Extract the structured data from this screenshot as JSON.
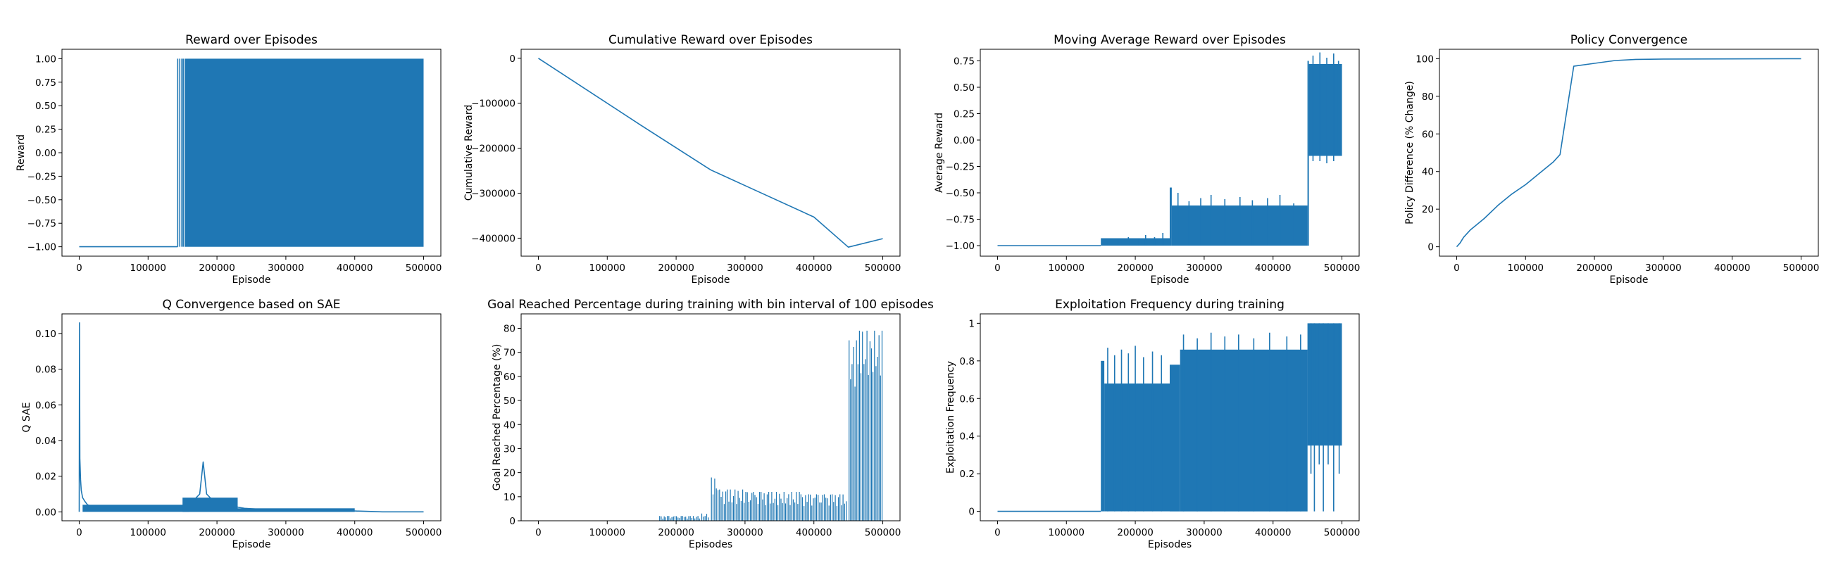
{
  "figure": {
    "suptitle": "",
    "color": "#1f77b4"
  },
  "chart_data": [
    {
      "type": "area",
      "title": "Reward over Episodes",
      "xlabel": "Episode",
      "ylabel": "Reward",
      "xlim": [
        -25000,
        525000
      ],
      "ylim": [
        -1.1,
        1.1
      ],
      "xticks": [
        0,
        100000,
        200000,
        300000,
        400000,
        500000
      ],
      "yticks": [
        -1.0,
        -0.75,
        -0.5,
        -0.25,
        0.0,
        0.25,
        0.5,
        0.75,
        1.0
      ],
      "ytick_labels": [
        "−1.00",
        "−0.75",
        "−0.50",
        "−0.25",
        "0.00",
        "0.25",
        "0.50",
        "0.75",
        "1.00"
      ],
      "grid": false,
      "series": [
        {
          "type": "line",
          "x": [
            0,
            143000
          ],
          "y": [
            -1.0,
            -1.0
          ]
        }
      ],
      "spikes": {
        "x": [
          143000,
          146000,
          149000,
          151000
        ],
        "y0": -1.0,
        "y1": 1.0
      },
      "bands": [
        {
          "x0": 153000,
          "x1": 500000,
          "y0": -1.0,
          "y1": 1.0
        }
      ]
    },
    {
      "type": "line",
      "title": "Cumulative Reward over Episodes",
      "xlabel": "Episode",
      "ylabel": "Cumulative Reward",
      "xlim": [
        -25000,
        525000
      ],
      "ylim": [
        -440000,
        20000
      ],
      "xticks": [
        0,
        100000,
        200000,
        300000,
        400000,
        500000
      ],
      "yticks": [
        -400000,
        -300000,
        -200000,
        -100000,
        0
      ],
      "ytick_labels": [
        "−400000",
        "−300000",
        "−200000",
        "−100000",
        "0"
      ],
      "grid": false,
      "series": [
        {
          "x": [
            0,
            150000,
            250000,
            300000,
            400000,
            450000,
            500000
          ],
          "y": [
            0,
            -150000,
            -248000,
            -283000,
            -353000,
            -420000,
            -401000
          ]
        }
      ]
    },
    {
      "type": "line",
      "title": "Moving Average Reward over Episodes",
      "xlabel": "Episode",
      "ylabel": "Average Reward",
      "xlim": [
        -25000,
        525000
      ],
      "ylim": [
        -1.1,
        0.86
      ],
      "xticks": [
        0,
        100000,
        200000,
        300000,
        400000,
        500000
      ],
      "yticks": [
        -1.0,
        -0.75,
        -0.5,
        -0.25,
        0.0,
        0.25,
        0.5,
        0.75
      ],
      "ytick_labels": [
        "−1.00",
        "−0.75",
        "−0.50",
        "−0.25",
        "0.00",
        "0.25",
        "0.50",
        "0.75"
      ],
      "grid": false,
      "series": [
        {
          "x": [
            0,
            140000,
            150000
          ],
          "y": [
            -1.0,
            -1.0,
            -1.0
          ]
        }
      ],
      "bands": [
        {
          "x0": 150000,
          "x1": 250000,
          "y0": -1.0,
          "y1": -0.93
        },
        {
          "x0": 250000,
          "x1": 253000,
          "y0": -1.0,
          "y1": -0.45
        },
        {
          "x0": 253000,
          "x1": 450000,
          "y0": -1.0,
          "y1": -0.62
        },
        {
          "x0": 450000,
          "x1": 452000,
          "y0": -1.0,
          "y1": 0.75
        },
        {
          "x0": 452000,
          "x1": 500000,
          "y0": -0.15,
          "y1": 0.72
        }
      ],
      "spikes": {
        "x": [
          160000,
          175000,
          190000,
          205000,
          215000,
          228000,
          240000,
          262000,
          278000,
          295000,
          310000,
          330000,
          352000,
          370000,
          392000,
          410000,
          430000,
          458000,
          468000,
          478000,
          488000,
          495000
        ],
        "y0": [
          -1.0,
          -1.0,
          -1.0,
          -1.0,
          -1.0,
          -1.0,
          -1.0,
          -1.0,
          -1.0,
          -1.0,
          -1.0,
          -1.0,
          -1.0,
          -1.0,
          -1.0,
          -1.0,
          -1.0,
          -0.2,
          -0.2,
          -0.22,
          -0.2,
          -0.15
        ],
        "y1": [
          -0.95,
          -0.94,
          -0.92,
          -0.93,
          -0.9,
          -0.92,
          -0.88,
          -0.5,
          -0.58,
          -0.55,
          -0.52,
          -0.56,
          -0.54,
          -0.57,
          -0.55,
          -0.52,
          -0.6,
          0.8,
          0.83,
          0.78,
          0.82,
          0.75
        ]
      }
    },
    {
      "type": "line",
      "title": "Policy Convergence",
      "xlabel": "Episode",
      "ylabel": "Policy Difference (% Change)",
      "xlim": [
        -25000,
        525000
      ],
      "ylim": [
        -5,
        105
      ],
      "xticks": [
        0,
        100000,
        200000,
        300000,
        400000,
        500000
      ],
      "yticks": [
        0,
        20,
        40,
        60,
        80,
        100
      ],
      "grid": false,
      "series": [
        {
          "x": [
            0,
            5000,
            10000,
            20000,
            40000,
            60000,
            80000,
            100000,
            120000,
            140000,
            150000,
            170000,
            200000,
            230000,
            260000,
            300000,
            500000
          ],
          "y": [
            0,
            2,
            5,
            9,
            15,
            22,
            28,
            33,
            39,
            45,
            49,
            96,
            97.5,
            99,
            99.6,
            99.8,
            100
          ]
        }
      ]
    },
    {
      "type": "line",
      "title": "Q Convergence based on SAE",
      "xlabel": "Episode",
      "ylabel": "Q SAE",
      "xlim": [
        -25000,
        525000
      ],
      "ylim": [
        -0.005,
        0.111
      ],
      "xticks": [
        0,
        100000,
        200000,
        300000,
        400000,
        500000
      ],
      "yticks": [
        0.0,
        0.02,
        0.04,
        0.06,
        0.08,
        0.1
      ],
      "ytick_labels": [
        "0.00",
        "0.02",
        "0.04",
        "0.06",
        "0.08",
        "0.10"
      ],
      "grid": false,
      "series": [
        {
          "x": [
            0,
            500,
            1000,
            2000,
            3000,
            5000,
            8000,
            12000,
            20000,
            40000,
            80000,
            120000,
            150000,
            165000,
            175000,
            180000,
            185000,
            195000,
            210000,
            240000,
            280000,
            320000,
            360000,
            400000,
            440000,
            500000
          ],
          "y": [
            0.0,
            0.106,
            0.03,
            0.018,
            0.012,
            0.008,
            0.006,
            0.004,
            0.003,
            0.003,
            0.002,
            0.002,
            0.003,
            0.006,
            0.01,
            0.028,
            0.01,
            0.006,
            0.004,
            0.002,
            0.001,
            0.001,
            0.001,
            0.0005,
            0.0,
            0.0
          ]
        }
      ],
      "bands": [
        {
          "x0": 5000,
          "x1": 160000,
          "y0": 0.0,
          "y1": 0.004
        },
        {
          "x0": 150000,
          "x1": 230000,
          "y0": 0.0,
          "y1": 0.008
        },
        {
          "x0": 230000,
          "x1": 400000,
          "y0": 0.0,
          "y1": 0.002
        }
      ]
    },
    {
      "type": "bar",
      "title": "Goal Reached Percentage during training with bin interval of 100 episodes",
      "xlabel": "Episodes",
      "ylabel": "Goal Reached Percentage (%)",
      "xlim": [
        -25000,
        525000
      ],
      "ylim": [
        0,
        86
      ],
      "xticks": [
        0,
        100000,
        200000,
        300000,
        400000,
        500000
      ],
      "yticks": [
        0,
        10,
        20,
        30,
        40,
        50,
        60,
        70,
        80
      ],
      "grid": false,
      "segments": [
        {
          "x0": 175000,
          "x1": 235000,
          "top": 2,
          "low": 0
        },
        {
          "x0": 236000,
          "x1": 248000,
          "top": 3,
          "low": 0
        },
        {
          "x0": 250000,
          "x1": 262000,
          "top": 18,
          "low": 5
        },
        {
          "x0": 262000,
          "x1": 300000,
          "top": 13,
          "low": 2
        },
        {
          "x0": 300000,
          "x1": 380000,
          "top": 12,
          "low": 2
        },
        {
          "x0": 380000,
          "x1": 448000,
          "top": 11,
          "low": 2
        },
        {
          "x0": 450000,
          "x1": 465000,
          "top": 75,
          "low": 40
        },
        {
          "x0": 465000,
          "x1": 500000,
          "top": 79,
          "low": 45
        }
      ]
    },
    {
      "type": "area",
      "title": "Exploitation Frequency during training",
      "xlabel": "Episodes",
      "ylabel": "Exploitation Frequency",
      "xlim": [
        -25000,
        525000
      ],
      "ylim": [
        -0.05,
        1.05
      ],
      "xticks": [
        0,
        100000,
        200000,
        300000,
        400000,
        500000
      ],
      "yticks": [
        0.0,
        0.2,
        0.4,
        0.6,
        0.8,
        1.0
      ],
      "grid": false,
      "series": [
        {
          "x": [
            0,
            150000
          ],
          "y": [
            0.0,
            0.0
          ]
        }
      ],
      "bands": [
        {
          "x0": 150000,
          "x1": 155000,
          "y0": 0.0,
          "y1": 0.8
        },
        {
          "x0": 155000,
          "x1": 250000,
          "y0": 0.0,
          "y1": 0.68
        },
        {
          "x0": 250000,
          "x1": 265000,
          "y0": 0.0,
          "y1": 0.78
        },
        {
          "x0": 265000,
          "x1": 450000,
          "y0": 0.0,
          "y1": 0.86
        },
        {
          "x0": 450000,
          "x1": 500000,
          "y0": 0.35,
          "y1": 1.0
        }
      ],
      "spikes": {
        "x": [
          160000,
          170000,
          180000,
          190000,
          200000,
          212000,
          225000,
          238000,
          270000,
          290000,
          310000,
          330000,
          350000,
          372000,
          395000,
          420000,
          440000,
          455000,
          460000,
          467000,
          473000,
          480000,
          488000,
          496000
        ],
        "y0": [
          0.0,
          0.0,
          0.0,
          0.0,
          0.0,
          0.0,
          0.0,
          0.0,
          0.0,
          0.0,
          0.0,
          0.0,
          0.0,
          0.0,
          0.0,
          0.0,
          0.0,
          0.2,
          0.0,
          0.25,
          0.0,
          0.25,
          0.0,
          0.2
        ],
        "y1": [
          0.87,
          0.83,
          0.86,
          0.84,
          0.88,
          0.82,
          0.85,
          0.83,
          0.94,
          0.92,
          0.95,
          0.93,
          0.94,
          0.92,
          0.95,
          0.93,
          0.94,
          1.0,
          1.0,
          1.0,
          1.0,
          1.0,
          1.0,
          1.0
        ]
      }
    }
  ]
}
